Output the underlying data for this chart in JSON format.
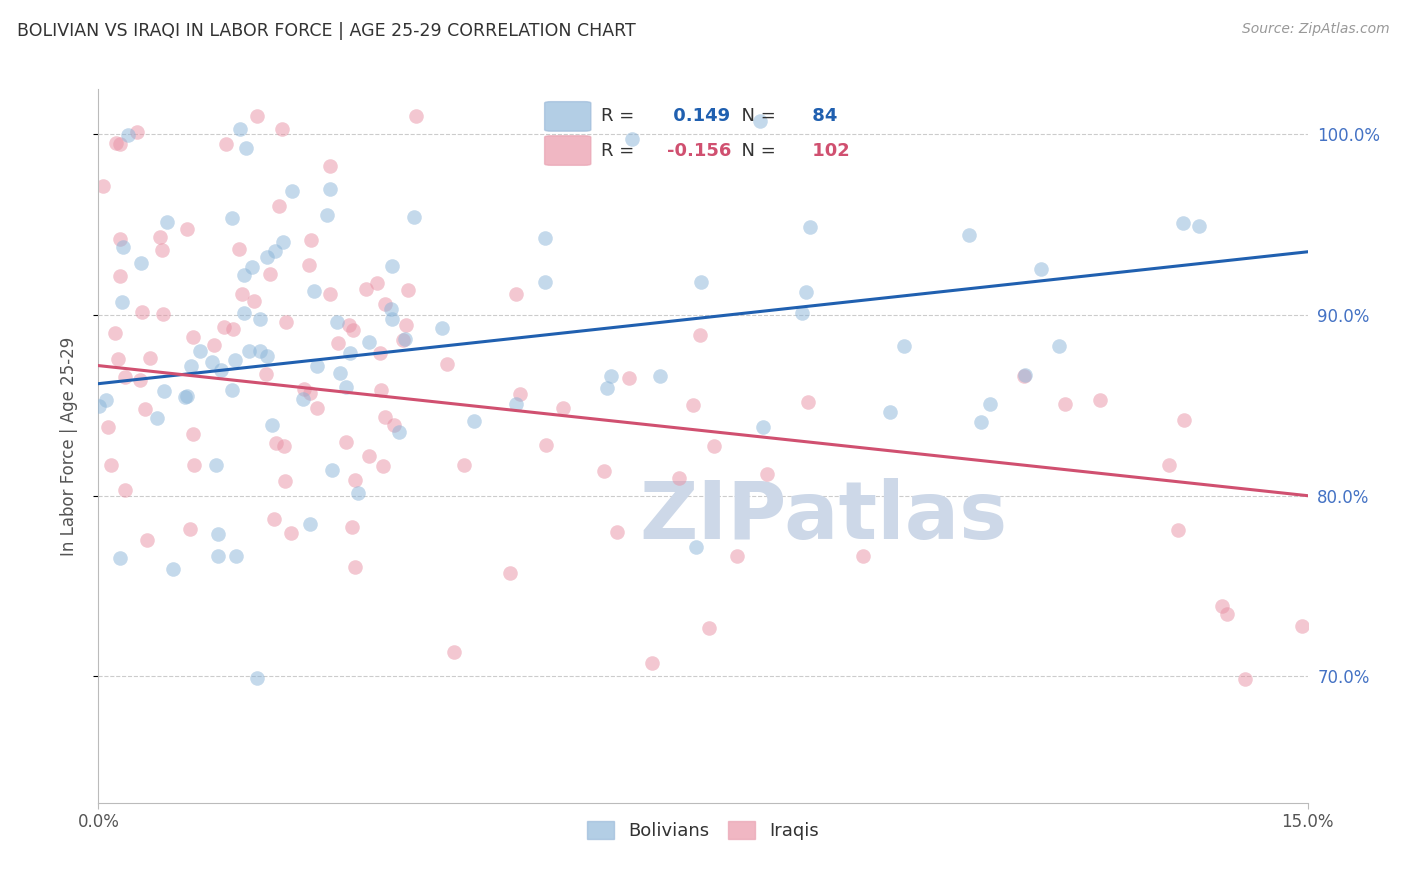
{
  "title": "BOLIVIAN VS IRAQI IN LABOR FORCE | AGE 25-29 CORRELATION CHART",
  "source": "Source: ZipAtlas.com",
  "ylabel": "In Labor Force | Age 25-29",
  "xlim": [
    0.0,
    0.15
  ],
  "ylim": [
    0.63,
    1.025
  ],
  "blue_R": 0.149,
  "blue_N": 84,
  "pink_R": -0.156,
  "pink_N": 102,
  "blue_color": "#8ab4d8",
  "pink_color": "#e891a4",
  "blue_line_color": "#2060b0",
  "pink_line_color": "#d05070",
  "legend_label_blue": "Bolivians",
  "legend_label_pink": "Iraqis",
  "background_color": "#ffffff",
  "grid_color": "#cccccc",
  "title_color": "#333333",
  "right_tick_color": "#4472c4",
  "watermark": "ZIPatlas",
  "watermark_color": "#cdd8e8",
  "blue_line_y0": 0.862,
  "blue_line_y1": 0.935,
  "pink_line_y0": 0.872,
  "pink_line_y1": 0.8,
  "seed": 7
}
